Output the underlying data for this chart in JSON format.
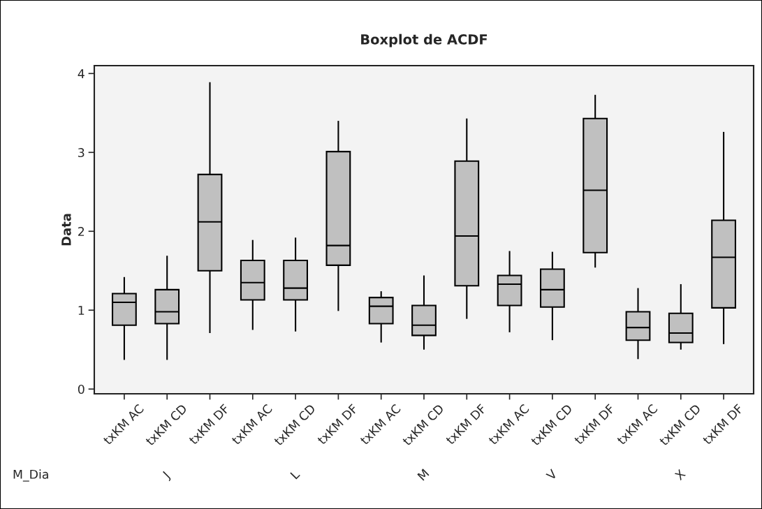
{
  "chart_data": {
    "type": "box",
    "title": "Boxplot de ACDF",
    "ylabel": "Data",
    "categories": [
      "txKM AC",
      "txKM CD",
      "txKM DF",
      "txKM AC",
      "txKM CD",
      "txKM DF",
      "txKM AC",
      "txKM CD",
      "txKM DF",
      "txKM AC",
      "txKM CD",
      "txKM DF",
      "txKM AC",
      "txKM CD",
      "txKM DF"
    ],
    "annotations": [
      "M_Dia",
      "J",
      "L",
      "M",
      "V",
      "X"
    ],
    "series": [
      {
        "color": "#c0c0c0",
        "boxes": [
          {
            "low": 0.37,
            "q1": 0.81,
            "median": 1.1,
            "q3": 1.21,
            "high": 1.42
          },
          {
            "low": 0.37,
            "q1": 0.83,
            "median": 0.98,
            "q3": 1.26,
            "high": 1.69
          },
          {
            "low": 0.71,
            "q1": 1.5,
            "median": 2.12,
            "q3": 2.72,
            "high": 3.89
          },
          {
            "low": 0.75,
            "q1": 1.13,
            "median": 1.35,
            "q3": 1.63,
            "high": 1.89
          },
          {
            "low": 0.73,
            "q1": 1.13,
            "median": 1.28,
            "q3": 1.63,
            "high": 1.92
          },
          {
            "low": 0.99,
            "q1": 1.57,
            "median": 1.82,
            "q3": 3.01,
            "high": 3.4
          },
          {
            "low": 0.59,
            "q1": 0.83,
            "median": 1.05,
            "q3": 1.16,
            "high": 1.24
          },
          {
            "low": 0.5,
            "q1": 0.68,
            "median": 0.81,
            "q3": 1.06,
            "high": 1.44
          },
          {
            "low": 0.89,
            "q1": 1.31,
            "median": 1.94,
            "q3": 2.89,
            "high": 3.43
          },
          {
            "low": 0.72,
            "q1": 1.06,
            "median": 1.33,
            "q3": 1.44,
            "high": 1.75
          },
          {
            "low": 0.62,
            "q1": 1.04,
            "median": 1.26,
            "q3": 1.52,
            "high": 1.74
          },
          {
            "low": 1.54,
            "q1": 1.73,
            "median": 2.52,
            "q3": 3.43,
            "high": 3.73
          },
          {
            "low": 0.38,
            "q1": 0.62,
            "median": 0.78,
            "q3": 0.98,
            "high": 1.28
          },
          {
            "low": 0.5,
            "q1": 0.59,
            "median": 0.71,
            "q3": 0.96,
            "high": 1.33
          },
          {
            "low": 0.57,
            "q1": 1.03,
            "median": 1.67,
            "q3": 2.14,
            "high": 3.26
          }
        ]
      }
    ],
    "ylim": [
      -0.06,
      4.1
    ],
    "yticks": [
      0,
      1,
      2,
      3,
      4
    ],
    "grid": false,
    "legend": false
  }
}
